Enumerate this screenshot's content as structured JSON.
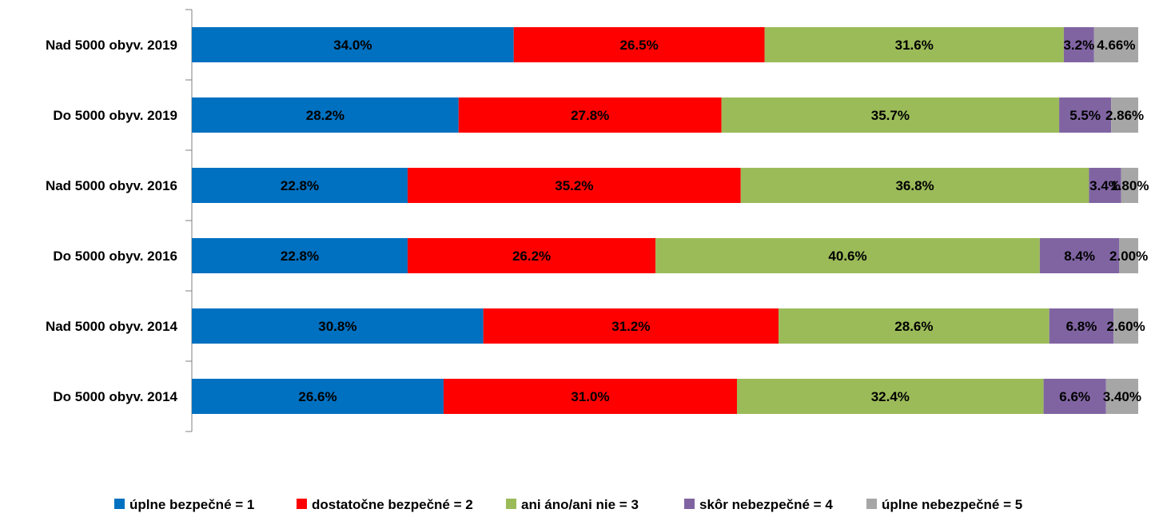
{
  "chart_data": {
    "type": "bar",
    "orientation": "horizontal",
    "stacked": "percent",
    "categories": [
      "Nad 5000 obyv. 2019",
      "Do 5000 obyv. 2019",
      "Nad 5000 obyv. 2016",
      "Do 5000 obyv. 2016",
      "Nad 5000 obyv. 2014",
      "Do 5000 obyv. 2014"
    ],
    "series": [
      {
        "name": "úplne bezpečné = 1",
        "color": "#0070C0",
        "values": [
          34.0,
          28.2,
          22.8,
          22.8,
          30.8,
          26.6
        ],
        "labels": [
          "34.0%",
          "28.2%",
          "22.8%",
          "22.8%",
          "30.8%",
          "26.6%"
        ]
      },
      {
        "name": "dostatočne bezpečné = 2",
        "color": "#FF0000",
        "values": [
          26.5,
          27.8,
          35.2,
          26.2,
          31.2,
          31.0
        ],
        "labels": [
          "26.5%",
          "27.8%",
          "35.2%",
          "26.2%",
          "31.2%",
          "31.0%"
        ]
      },
      {
        "name": "ani áno/ani nie = 3",
        "color": "#9BBB59",
        "values": [
          31.6,
          35.7,
          36.8,
          40.6,
          28.6,
          32.4
        ],
        "labels": [
          "31.6%",
          "35.7%",
          "36.8%",
          "40.6%",
          "28.6%",
          "32.4%"
        ]
      },
      {
        "name": "skôr nebezpečné = 4",
        "color": "#8064A2",
        "values": [
          3.2,
          5.5,
          3.4,
          8.4,
          6.8,
          6.6
        ],
        "labels": [
          "3.2%",
          "5.5%",
          "3.4%",
          "8.4%",
          "6.8%",
          "6.6%"
        ]
      },
      {
        "name": "úplne nebezpečné = 5",
        "color": "#A6A6A6",
        "values": [
          4.66,
          2.86,
          1.8,
          2.0,
          2.6,
          3.4
        ],
        "labels": [
          "4.66%",
          "2.86%",
          "1.80%",
          "2.00%",
          "2.60%",
          "3.40%"
        ]
      }
    ],
    "legend_position": "bottom",
    "grid": false
  }
}
